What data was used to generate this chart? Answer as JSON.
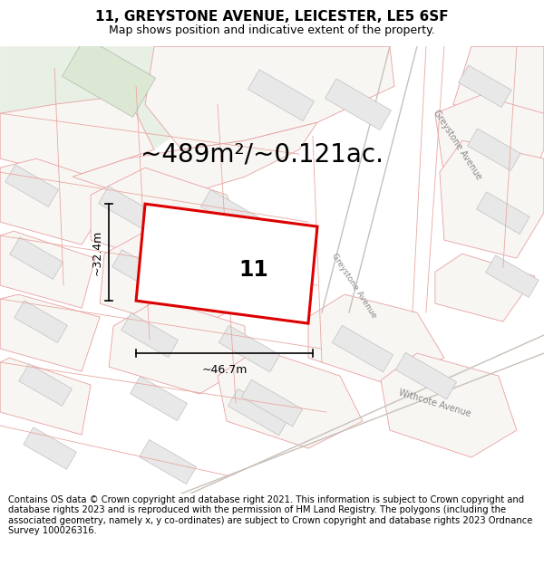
{
  "title": "11, GREYSTONE AVENUE, LEICESTER, LE5 6SF",
  "subtitle": "Map shows position and indicative extent of the property.",
  "footer": "Contains OS data © Crown copyright and database right 2021. This information is subject to Crown copyright and database rights 2023 and is reproduced with the permission of HM Land Registry. The polygons (including the associated geometry, namely x, y co-ordinates) are subject to Crown copyright and database rights 2023 Ordnance Survey 100026316.",
  "area_text": "~489m²/~0.121ac.",
  "map_bg": "#f5f3f0",
  "plot_fill": "#ffffff",
  "plot_stroke": "#dd0000",
  "parcel_fill": "#f0eeeb",
  "parcel_stroke": "#e8a0a0",
  "building_fill": "#e8e8e8",
  "building_stroke": "#c0c0c0",
  "green_fill": "#e8f0e4",
  "road_fill": "#ffffff",
  "road_label_color": "#888888",
  "dim_color": "#000000",
  "label_11": "11",
  "dim_width": "~46.7m",
  "dim_height": "~32.4m",
  "title_fontsize": 11,
  "subtitle_fontsize": 9,
  "footer_fontsize": 7.2,
  "area_fontsize": 20
}
